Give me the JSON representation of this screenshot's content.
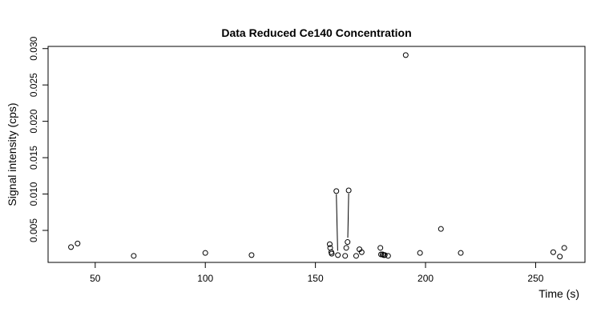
{
  "chart_data": {
    "type": "scatter",
    "title": "Data Reduced Ce140 Concentration",
    "xlabel": "Time (s)",
    "ylabel": "Signal intensity (cps)",
    "xlim": [
      28.6,
      272.4
    ],
    "ylim": [
      0.0006,
      0.0303
    ],
    "x_ticks": [
      50,
      100,
      150,
      200,
      250
    ],
    "y_ticks": [
      0.005,
      0.01,
      0.015,
      0.02,
      0.025,
      0.03
    ],
    "x_tick_labels": [
      "50",
      "100",
      "150",
      "200",
      "250"
    ],
    "y_tick_labels": [
      "0.005",
      "0.010",
      "0.015",
      "0.020",
      "0.025",
      "0.030"
    ],
    "grid": false,
    "legend": "none",
    "points": [
      {
        "x": 39,
        "y": 0.0027
      },
      {
        "x": 42,
        "y": 0.0032
      },
      {
        "x": 67.5,
        "y": 0.0015
      },
      {
        "x": 100,
        "y": 0.0019
      },
      {
        "x": 121,
        "y": 0.0016
      },
      {
        "x": 156.5,
        "y": 0.0031
      },
      {
        "x": 156.7,
        "y": 0.0026
      },
      {
        "x": 157.2,
        "y": 0.002
      },
      {
        "x": 157.4,
        "y": 0.0018
      },
      {
        "x": 159.5,
        "y": 0.0104
      },
      {
        "x": 160.2,
        "y": 0.0016
      },
      {
        "x": 163.5,
        "y": 0.0015
      },
      {
        "x": 164,
        "y": 0.0026
      },
      {
        "x": 164.6,
        "y": 0.0034
      },
      {
        "x": 165.1,
        "y": 0.0105
      },
      {
        "x": 168.5,
        "y": 0.0015
      },
      {
        "x": 170,
        "y": 0.0024
      },
      {
        "x": 171,
        "y": 0.002
      },
      {
        "x": 179.5,
        "y": 0.0026
      },
      {
        "x": 179.8,
        "y": 0.0017
      },
      {
        "x": 180.5,
        "y": 0.0017
      },
      {
        "x": 181,
        "y": 0.0016
      },
      {
        "x": 181.5,
        "y": 0.0016
      },
      {
        "x": 183,
        "y": 0.0015
      },
      {
        "x": 191,
        "y": 0.0291
      },
      {
        "x": 197.5,
        "y": 0.0019
      },
      {
        "x": 207,
        "y": 0.0052
      },
      {
        "x": 216,
        "y": 0.0019
      },
      {
        "x": 258,
        "y": 0.002
      },
      {
        "x": 261,
        "y": 0.0014
      },
      {
        "x": 263,
        "y": 0.0026
      }
    ],
    "segments": [
      {
        "x1": 159.5,
        "y1": 0.0104,
        "x2": 160.1,
        "y2": 0.0022
      },
      {
        "x1": 165.1,
        "y1": 0.0105,
        "x2": 164.7,
        "y2": 0.004
      }
    ]
  }
}
